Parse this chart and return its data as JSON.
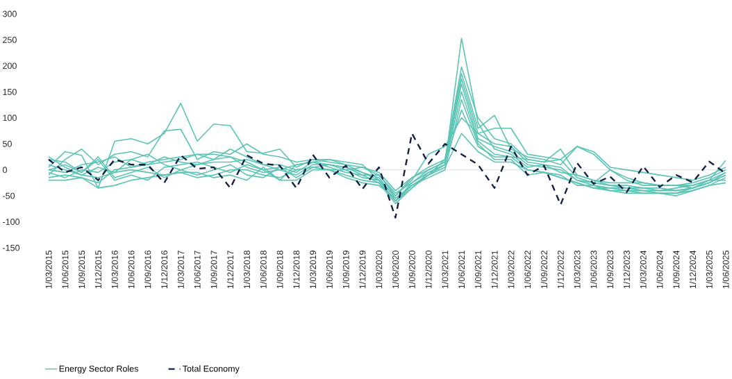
{
  "chart_data": {
    "type": "line",
    "categories": [
      "1/03/2015",
      "1/06/2015",
      "1/09/2015",
      "1/12/2015",
      "1/03/2016",
      "1/06/2016",
      "1/09/2016",
      "1/12/2016",
      "1/03/2017",
      "1/06/2017",
      "1/09/2017",
      "1/12/2017",
      "1/03/2018",
      "1/06/2018",
      "1/09/2018",
      "1/12/2018",
      "1/03/2019",
      "1/06/2019",
      "1/09/2019",
      "1/12/2019",
      "1/03/2020",
      "1/06/2020",
      "1/09/2020",
      "1/12/2020",
      "1/03/2021",
      "1/06/2021",
      "1/09/2021",
      "1/12/2021",
      "1/03/2022",
      "1/06/2022",
      "1/09/2022",
      "1/12/2022",
      "1/03/2023",
      "1/06/2023",
      "1/09/2023",
      "1/12/2023",
      "1/03/2024",
      "1/06/2024",
      "1/09/2024",
      "1/12/2024",
      "1/03/2025",
      "1/06/2025"
    ],
    "series": [
      {
        "name": "Energy Sector Roles",
        "color": "#5cc4b4",
        "values": [
          10,
          0,
          -10,
          5,
          -5,
          20,
          10,
          25,
          15,
          10,
          20,
          25,
          15,
          0,
          5,
          -5,
          15,
          10,
          5,
          -5,
          -20,
          -60,
          -25,
          -5,
          10,
          253,
          90,
          40,
          30,
          5,
          10,
          5,
          -20,
          -25,
          -30,
          -35,
          -35,
          -40,
          -40,
          -35,
          -20,
          -5
        ]
      },
      {
        "color": "#5cc4b4",
        "values": [
          5,
          35,
          28,
          -35,
          55,
          60,
          50,
          70,
          128,
          55,
          88,
          85,
          35,
          32,
          40,
          5,
          20,
          15,
          10,
          5,
          -10,
          -50,
          -20,
          30,
          45,
          100,
          70,
          80,
          80,
          30,
          25,
          20,
          45,
          35,
          5,
          0,
          -5,
          -10,
          -15,
          -20,
          -10,
          5
        ]
      },
      {
        "color": "#5cc4b4",
        "values": [
          -10,
          20,
          40,
          10,
          30,
          35,
          25,
          75,
          78,
          20,
          35,
          30,
          50,
          30,
          25,
          15,
          20,
          20,
          15,
          10,
          -20,
          -50,
          -15,
          5,
          20,
          198,
          100,
          60,
          50,
          20,
          15,
          40,
          -10,
          -20,
          -25,
          -25,
          -25,
          -30,
          -30,
          -30,
          -20,
          18
        ]
      },
      {
        "color": "#5cc4b4",
        "values": [
          0,
          10,
          -5,
          25,
          -15,
          -5,
          5,
          -15,
          0,
          10,
          15,
          15,
          20,
          10,
          0,
          10,
          15,
          20,
          10,
          -5,
          -15,
          -55,
          -30,
          -10,
          20,
          185,
          80,
          105,
          40,
          25,
          20,
          10,
          45,
          30,
          0,
          -15,
          -25,
          -30,
          -30,
          -35,
          -25,
          -5
        ]
      },
      {
        "color": "#5cc4b4",
        "values": [
          -15,
          -10,
          -15,
          -25,
          0,
          5,
          10,
          15,
          20,
          30,
          20,
          40,
          25,
          10,
          10,
          0,
          5,
          10,
          5,
          -10,
          -25,
          -65,
          -35,
          -5,
          10,
          175,
          70,
          50,
          45,
          15,
          10,
          -5,
          -10,
          -20,
          -30,
          -30,
          -35,
          -35,
          -40,
          -35,
          -25,
          -10
        ]
      },
      {
        "color": "#5cc4b4",
        "values": [
          20,
          15,
          -5,
          20,
          -20,
          -10,
          -20,
          5,
          10,
          15,
          5,
          -5,
          10,
          0,
          -20,
          10,
          15,
          5,
          -5,
          -10,
          -10,
          -45,
          -25,
          0,
          15,
          165,
          60,
          45,
          35,
          10,
          5,
          0,
          -20,
          -30,
          -35,
          -35,
          -40,
          -40,
          -35,
          -30,
          -20,
          -20
        ]
      },
      {
        "color": "#5cc4b4",
        "values": [
          -5,
          -15,
          0,
          -5,
          15,
          20,
          30,
          10,
          0,
          -10,
          0,
          10,
          -10,
          -15,
          5,
          -15,
          5,
          0,
          0,
          -15,
          -20,
          -60,
          -30,
          -10,
          10,
          150,
          55,
          30,
          25,
          0,
          -5,
          -15,
          -25,
          -35,
          -35,
          -40,
          -40,
          -45,
          -45,
          -35,
          -25,
          -10
        ]
      },
      {
        "color": "#5cc4b4",
        "values": [
          -20,
          -20,
          -15,
          -35,
          -30,
          -20,
          -15,
          -10,
          -5,
          -15,
          -10,
          0,
          0,
          -10,
          -15,
          0,
          5,
          0,
          -15,
          -25,
          -30,
          -55,
          -30,
          -15,
          0,
          135,
          50,
          20,
          20,
          -10,
          -5,
          -15,
          -25,
          -35,
          -40,
          -40,
          -45,
          -45,
          -50,
          -40,
          -30,
          -15
        ]
      },
      {
        "color": "#5cc4b4",
        "values": [
          0,
          -5,
          10,
          15,
          25,
          5,
          15,
          20,
          25,
          30,
          30,
          25,
          5,
          -5,
          0,
          -10,
          10,
          10,
          0,
          5,
          -5,
          -40,
          -15,
          0,
          15,
          115,
          45,
          25,
          25,
          20,
          15,
          20,
          -15,
          -25,
          0,
          -20,
          -30,
          -30,
          -30,
          -25,
          -15,
          0
        ]
      },
      {
        "color": "#5cc4b4",
        "values": [
          25,
          5,
          -10,
          -15,
          -5,
          0,
          -5,
          -10,
          -5,
          -5,
          -15,
          -10,
          -20,
          5,
          -20,
          -20,
          0,
          0,
          -10,
          -20,
          -25,
          -60,
          -35,
          -10,
          5,
          70,
          35,
          15,
          15,
          0,
          -5,
          -10,
          -30,
          -30,
          -40,
          -45,
          -45,
          -45,
          -45,
          -40,
          -30,
          -25
        ]
      },
      {
        "name": "Total Economy",
        "color": "#16214a",
        "line_style": "dashed",
        "values": [
          20,
          -5,
          5,
          -20,
          20,
          10,
          10,
          -25,
          28,
          2,
          5,
          -35,
          28,
          12,
          8,
          -35,
          29,
          -15,
          8,
          -37,
          5,
          -92,
          70,
          12,
          50,
          30,
          10,
          -35,
          45,
          -10,
          8,
          -67,
          13,
          -27,
          -13,
          -43,
          7,
          -33,
          -10,
          -24,
          16,
          -7
        ]
      }
    ],
    "ylim": [
      -150,
      300
    ],
    "yticks": [
      -150,
      -100,
      -50,
      0,
      50,
      100,
      150,
      200,
      250,
      300
    ],
    "ref_lines": [
      {
        "axis": "y",
        "value": 0,
        "color": "#e0e0e0"
      }
    ],
    "legend": "bottom left",
    "grid": false
  }
}
